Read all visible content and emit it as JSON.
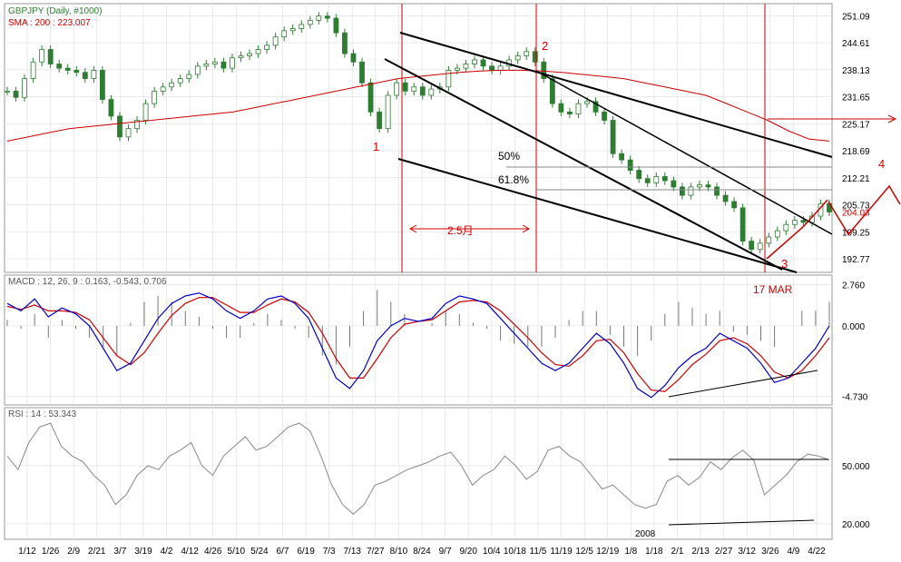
{
  "header": {
    "symbol_line": "GBPJPY (Daily, #1000)",
    "sma_line": "SMA : 200 : 223.007",
    "macd_line": "MACD : 12, 26, 9 : 0.163, -0.543, 0.706",
    "rsi_line": "RSI : 14 : 53.343"
  },
  "colors": {
    "candle": "#2e7d32",
    "sma": "#cc0000",
    "annotation": "#cc0000",
    "grid": "#dddddd",
    "macd_signal": "#cc0000",
    "macd_main": "#0000cc",
    "rsi_line": "#888888",
    "trend": "#000000"
  },
  "annotations": {
    "wave_1": "1",
    "wave_2": "2",
    "wave_3": "3",
    "wave_4": "4",
    "fib_50": "50%",
    "fib_618": "61.8%",
    "duration": "2.5月",
    "date_mark": "17 MAR",
    "year_mark": "2008"
  },
  "chart_data": [
    {
      "type": "line",
      "title": "GBPJPY (Daily, #1000)",
      "panel": "price",
      "x_ticks": [
        "1/12",
        "1/26",
        "2/9",
        "2/21",
        "3/7",
        "3/19",
        "4/2",
        "4/12",
        "4/26",
        "5/10",
        "5/24",
        "6/7",
        "6/19",
        "7/3",
        "7/13",
        "7/27",
        "8/10",
        "8/24",
        "9/7",
        "9/20",
        "10/4",
        "10/18",
        "11/5",
        "11/19",
        "12/5",
        "12/19",
        "1/8",
        "1/18",
        "2/1",
        "2/13",
        "2/27",
        "3/12",
        "3/26",
        "4/9",
        "4/22"
      ],
      "y_ticks": [
        251.09,
        244.61,
        238.13,
        231.65,
        225.17,
        218.69,
        212.21,
        205.73,
        199.25,
        192.77
      ],
      "ylim": [
        189.5,
        254
      ],
      "last_price_label": "204.03",
      "series": [
        {
          "name": "GBPJPY",
          "values": [
            233,
            231.5,
            236,
            240,
            243,
            239.5,
            238.5,
            238,
            237.5,
            236,
            238,
            231,
            227,
            222,
            224,
            226,
            230,
            233,
            234,
            235,
            236,
            237,
            239,
            239.5,
            240,
            238.5,
            241,
            241.5,
            242,
            243,
            244,
            246,
            247.5,
            248,
            249,
            250,
            251,
            250.5,
            247,
            242,
            240,
            235,
            228,
            224,
            232,
            235,
            233,
            234,
            232,
            233.5,
            234,
            238,
            238.5,
            239.5,
            240.5,
            239,
            238,
            239,
            240.5,
            241.5,
            242.5,
            240,
            236,
            230,
            228,
            227.5,
            230,
            230.5,
            228,
            226,
            218,
            216.5,
            214,
            212,
            211,
            212.5,
            211.5,
            210,
            208,
            210,
            210.5,
            210,
            208,
            206.5,
            205,
            197,
            195,
            196.5,
            198,
            199.5,
            201,
            202,
            201.5,
            203,
            206,
            204
          ]
        },
        {
          "name": "SMA 200",
          "values": [
            221,
            222,
            223,
            224,
            224.5,
            225,
            225.5,
            226,
            226.5,
            227,
            227.5,
            228,
            229,
            230,
            231,
            232,
            233,
            234,
            235,
            236,
            236.5,
            237,
            237.5,
            237.8,
            238,
            238,
            237.8,
            237.5,
            237,
            236.5,
            236,
            235,
            234,
            233,
            232,
            230,
            228,
            226,
            223.5,
            221.5,
            221
          ]
        }
      ]
    },
    {
      "type": "line",
      "title": "MACD : 12, 26, 9 : 0.163, -0.543, 0.706",
      "panel": "macd",
      "y_ticks": [
        2.76,
        0.0,
        -4.73
      ],
      "ylim": [
        -5.3,
        3.4
      ],
      "series": [
        {
          "name": "MACD",
          "values": [
            1.5,
            1.0,
            1.8,
            0.6,
            1.2,
            0.8,
            0.0,
            -1.5,
            -3.0,
            -2.5,
            -1.0,
            0.5,
            1.5,
            2.0,
            2.2,
            1.8,
            1.0,
            0.5,
            1.0,
            1.8,
            2.0,
            1.5,
            0.5,
            -1.5,
            -3.5,
            -4.2,
            -3.0,
            -1.0,
            0.0,
            0.5,
            0.3,
            0.5,
            1.5,
            2.0,
            1.8,
            1.5,
            0.5,
            -0.5,
            -1.5,
            -2.5,
            -3.0,
            -2.5,
            -1.5,
            -0.5,
            -1.2,
            -2.5,
            -4.2,
            -4.8,
            -4.0,
            -2.8,
            -2.0,
            -1.5,
            -0.5,
            -1.0,
            -1.5,
            -2.5,
            -3.8,
            -3.5,
            -2.5,
            -1.5,
            0.0
          ]
        },
        {
          "name": "Signal",
          "values": [
            1.3,
            1.1,
            1.4,
            1.0,
            1.0,
            0.9,
            0.4,
            -0.8,
            -2.0,
            -2.6,
            -1.8,
            -0.5,
            0.7,
            1.5,
            1.9,
            1.9,
            1.4,
            0.9,
            0.9,
            1.4,
            1.8,
            1.6,
            0.9,
            -0.5,
            -2.2,
            -3.5,
            -3.5,
            -2.2,
            -0.8,
            0.1,
            0.3,
            0.4,
            1.0,
            1.6,
            1.7,
            1.6,
            1.0,
            0.1,
            -0.8,
            -1.8,
            -2.6,
            -2.7,
            -2.0,
            -1.0,
            -0.9,
            -1.8,
            -3.2,
            -4.3,
            -4.4,
            -3.6,
            -2.6,
            -1.9,
            -1.0,
            -0.8,
            -1.2,
            -2.0,
            -3.1,
            -3.5,
            -3.0,
            -2.0,
            -0.8
          ]
        },
        {
          "name": "Histogram",
          "values": [
            0.2,
            -0.1,
            0.4,
            -0.4,
            0.2,
            -0.1,
            -0.4,
            -0.7,
            -1.0,
            0.1,
            0.8,
            1.0,
            0.8,
            0.5,
            0.3,
            -0.1,
            -0.4,
            -0.4,
            0.1,
            0.4,
            0.2,
            -0.1,
            -0.4,
            -1.0,
            -1.3,
            -0.7,
            0.5,
            1.2,
            0.8,
            0.4,
            0.0,
            0.1,
            0.5,
            0.4,
            0.1,
            -0.1,
            -0.5,
            -0.6,
            -0.7,
            -0.7,
            -0.4,
            0.2,
            0.5,
            0.5,
            -0.3,
            -0.7,
            -1.0,
            -0.5,
            0.4,
            0.8,
            0.6,
            0.4,
            0.5,
            -0.2,
            -0.3,
            -0.5,
            -0.7,
            0.0,
            0.5,
            0.5,
            0.8
          ]
        }
      ]
    },
    {
      "type": "line",
      "title": "RSI : 14 : 53.343",
      "panel": "rsi",
      "y_ticks": [
        50.0,
        20.0
      ],
      "ylim": [
        12,
        80
      ],
      "series": [
        {
          "name": "RSI",
          "values": [
            55,
            48,
            62,
            70,
            72,
            60,
            55,
            52,
            45,
            40,
            30,
            35,
            45,
            50,
            48,
            55,
            58,
            62,
            50,
            45,
            55,
            60,
            65,
            58,
            60,
            65,
            70,
            72,
            68,
            55,
            40,
            30,
            25,
            30,
            40,
            42,
            45,
            48,
            50,
            52,
            55,
            57,
            50,
            40,
            45,
            48,
            55,
            50,
            43,
            47,
            58,
            60,
            55,
            52,
            45,
            38,
            40,
            35,
            30,
            28,
            30,
            42,
            45,
            40,
            44,
            52,
            48,
            54,
            58,
            53,
            35,
            40,
            45,
            52,
            56,
            55,
            53
          ]
        }
      ]
    }
  ]
}
